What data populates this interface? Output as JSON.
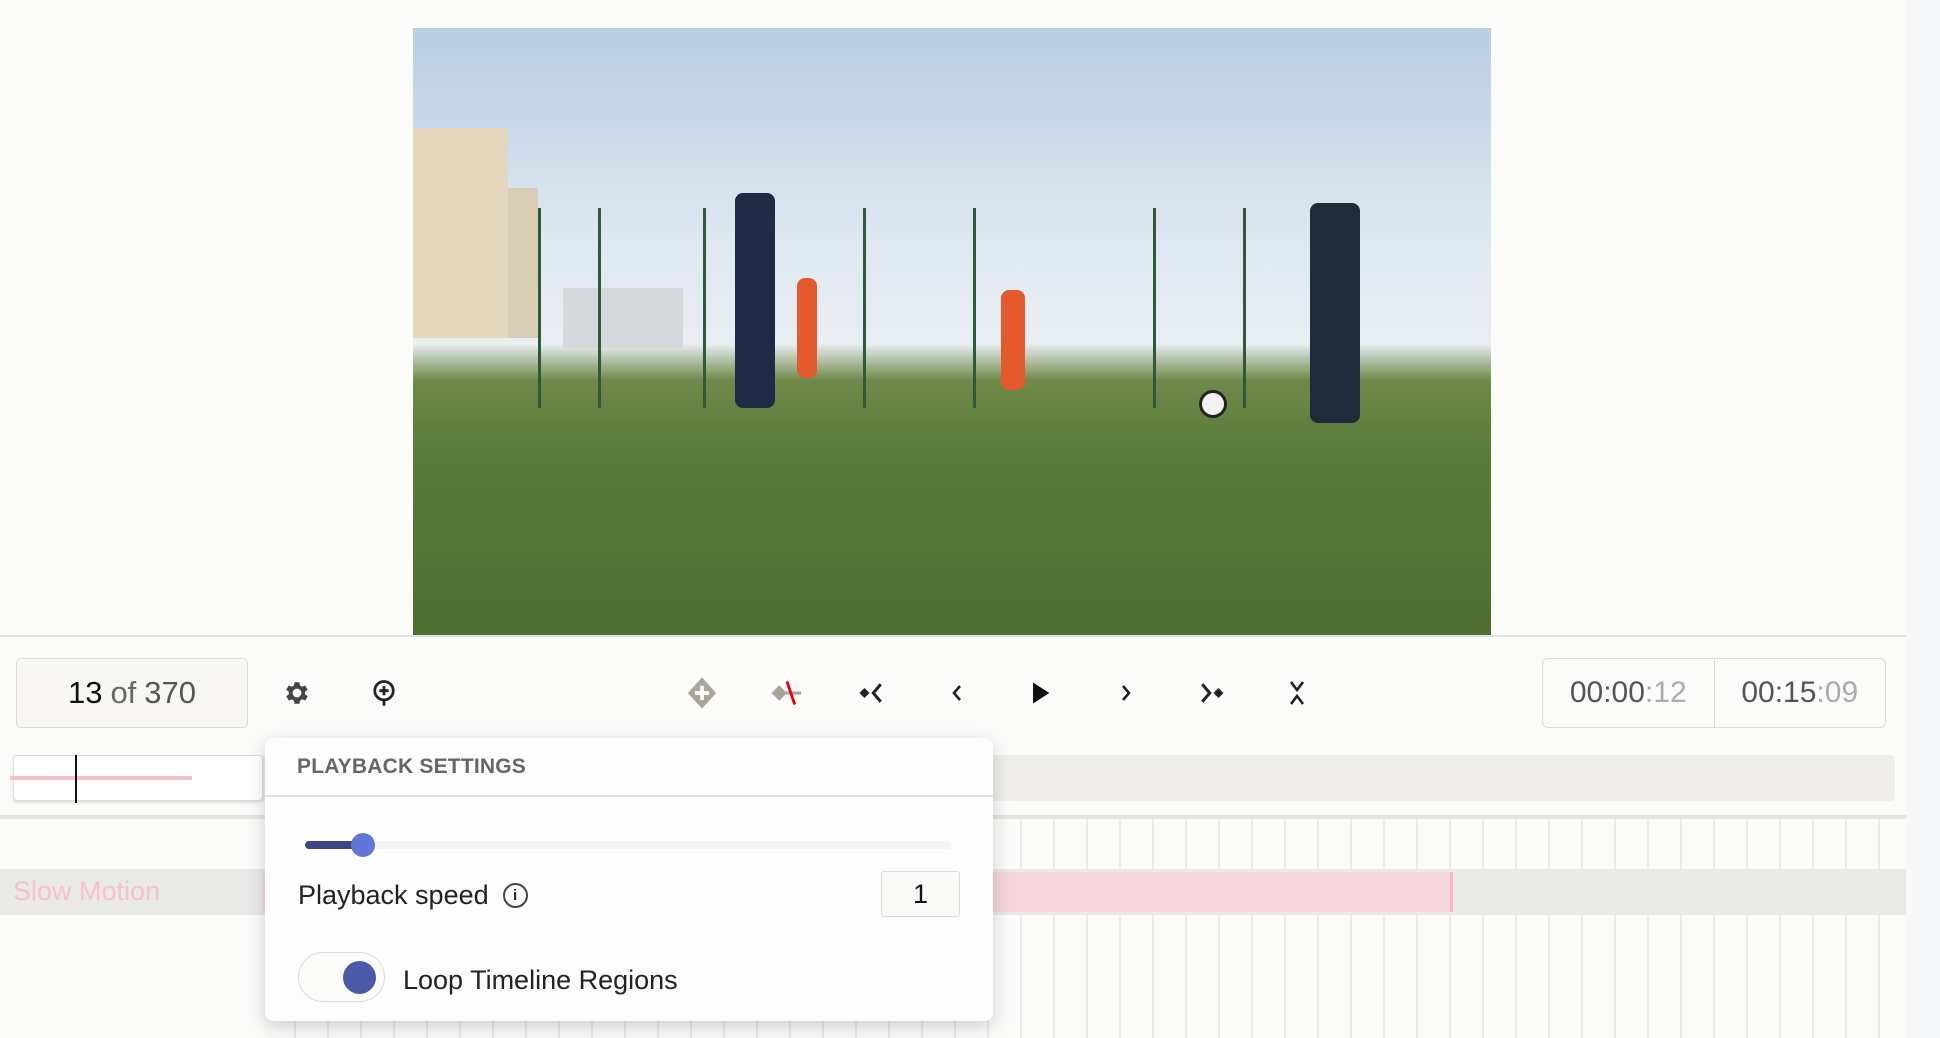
{
  "player": {
    "frame": {
      "current": "13",
      "of": "of",
      "total": "370"
    },
    "current_time": {
      "main": "00:00",
      "frames": ":12"
    },
    "duration": {
      "main": "00:15",
      "frames": ":09"
    },
    "toolbar_icons": [
      "gear-icon",
      "zoom-in-icon",
      "add-keyframe-icon",
      "remove-keyframe-icon",
      "previous-keyframe-icon",
      "previous-frame-icon",
      "play-icon",
      "next-frame-icon",
      "next-keyframe-icon",
      "collapse-icon"
    ]
  },
  "timeline": {
    "tracks": [
      {
        "label": "Slow Motion",
        "color": "#f5d5dc"
      }
    ]
  },
  "playback_settings": {
    "title": "PLAYBACK SETTINGS",
    "speed_label": "Playback speed",
    "speed_value": "1",
    "slider_fraction": 0.09,
    "loop_label": "Loop Timeline Regions",
    "loop_enabled": true,
    "accent": "#4a5aa8"
  }
}
